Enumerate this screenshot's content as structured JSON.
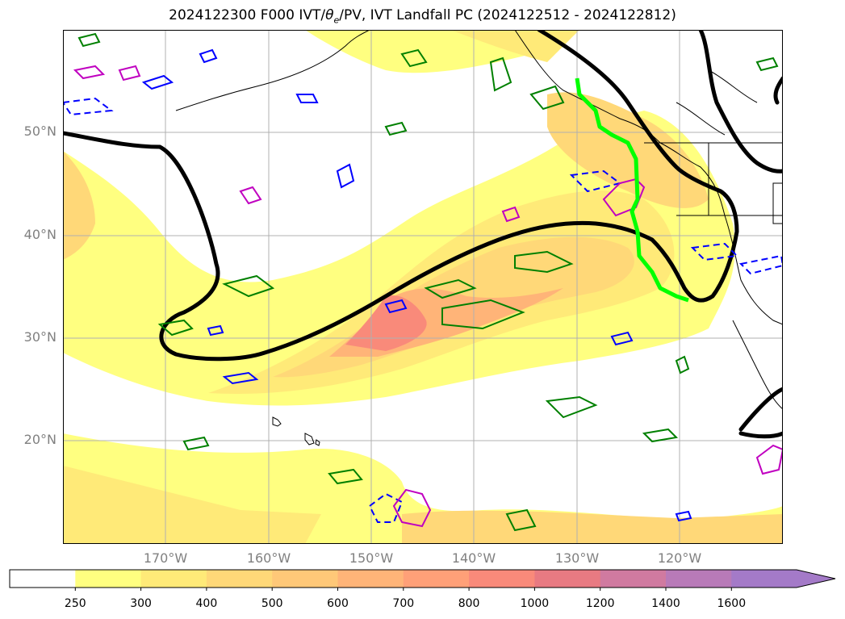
{
  "title_main": "2024122300 F000 IVT/",
  "title_theta": "θ",
  "title_theta_sub": "e",
  "title_rest": "/PV, IVT Landfall PC (2024122512 - 2024122812)",
  "lat_labels": [
    "50°N",
    "40°N",
    "30°N",
    "20°N"
  ],
  "lon_labels": [
    "170°W",
    "160°W",
    "150°W",
    "140°W",
    "130°W",
    "120°W"
  ],
  "colorbar": {
    "ticks": [
      "250",
      "300",
      "400",
      "500",
      "600",
      "700",
      "800",
      "1000",
      "1200",
      "1400",
      "1600"
    ],
    "colors": [
      "#ffffff",
      "#ffff80",
      "#ffea78",
      "#ffd878",
      "#ffc878",
      "#ffb478",
      "#ffa078",
      "#f98a7a",
      "#e87a82",
      "#d07aa0",
      "#b87ab8",
      "#a47ac8"
    ]
  },
  "colors": {
    "ivt_low": "#ffff80",
    "ivt_mid": "#ffd878",
    "ivt_high": "#f98a7a",
    "theta_e_contour": "#000000",
    "pv_contour_green": "#008000",
    "pv_contour_blue": "#0000ff",
    "pv_contour_magenta": "#c000c0",
    "landfall_line": "#00ff00"
  }
}
